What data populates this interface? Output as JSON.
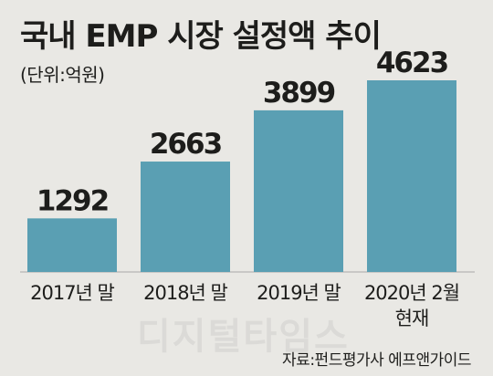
{
  "header": {
    "title": "국내 EMP 시장 설정액 추이",
    "unit": "(단위:억원)"
  },
  "source": "자료:펀드평가사 에프앤가이드",
  "watermark": "디지털타임스",
  "colors": {
    "bar": "#5a9fb3",
    "background": "#e9e8e4",
    "baseline": "#a9a9a9"
  },
  "chart_data": {
    "type": "bar",
    "categories": [
      [
        "2017년 말"
      ],
      [
        "2018년 말"
      ],
      [
        "2019년 말"
      ],
      [
        "2020년 2월",
        "현재"
      ]
    ],
    "values": [
      1292,
      2663,
      3899,
      4623
    ],
    "value_labels": [
      "1292",
      "2663",
      "3899",
      "4623"
    ],
    "title": "국내 EMP 시장 설정액 추이",
    "ylabel": "",
    "xlabel": "",
    "ylim": [
      0,
      4800
    ],
    "grid": false,
    "legend": "none"
  }
}
